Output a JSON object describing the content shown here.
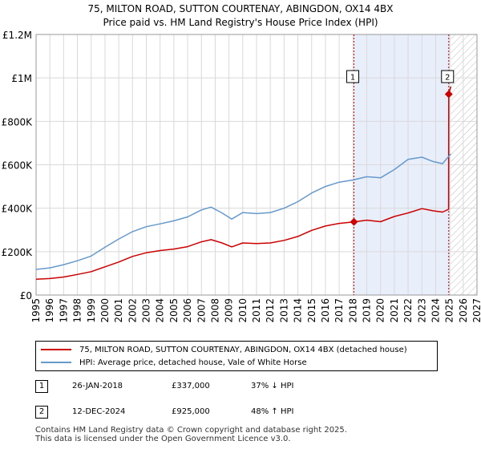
{
  "chart_data": {
    "type": "line",
    "title": "75, MILTON ROAD, SUTTON COURTENAY, ABINGDON, OX14 4BX",
    "subtitle": "Price paid vs. HM Land Registry's House Price Index (HPI)",
    "xlabel": "",
    "ylabel": "",
    "xlim": [
      1995,
      2027
    ],
    "ylim": [
      0,
      1200000
    ],
    "x_ticks": [
      "1995",
      "1996",
      "1997",
      "1998",
      "1999",
      "2000",
      "2001",
      "2002",
      "2003",
      "2004",
      "2005",
      "2006",
      "2007",
      "2008",
      "2009",
      "2010",
      "2011",
      "2012",
      "2013",
      "2014",
      "2015",
      "2016",
      "2017",
      "2018",
      "2019",
      "2020",
      "2021",
      "2022",
      "2023",
      "2024",
      "2025",
      "2026",
      "2027"
    ],
    "y_ticks": [
      {
        "value": 0,
        "label": "£0"
      },
      {
        "value": 200000,
        "label": "£200K"
      },
      {
        "value": 400000,
        "label": "£400K"
      },
      {
        "value": 600000,
        "label": "£600K"
      },
      {
        "value": 800000,
        "label": "£800K"
      },
      {
        "value": 1000000,
        "label": "£1M"
      },
      {
        "value": 1200000,
        "label": "£1.2M"
      }
    ],
    "grid": true,
    "series": [
      {
        "name": "75, MILTON ROAD, SUTTON COURTENAY, ABINGDON, OX14 4BX (detached house)",
        "color": "#cc0000",
        "x": [
          1995.0,
          1996.0,
          1997.0,
          1998.0,
          1999.0,
          2000.0,
          2001.0,
          2002.0,
          2003.0,
          2004.0,
          2005.0,
          2006.0,
          2007.0,
          2007.7,
          2008.5,
          2009.2,
          2010.0,
          2011.0,
          2012.0,
          2013.0,
          2014.0,
          2015.0,
          2016.0,
          2017.0,
          2018.07,
          2019.0,
          2020.0,
          2021.0,
          2022.0,
          2023.0,
          2023.8,
          2024.5,
          2024.94,
          2024.95,
          2025.1
        ],
        "values": [
          73000,
          76000,
          83000,
          95000,
          108000,
          130000,
          152000,
          178000,
          195000,
          205000,
          212000,
          223000,
          245000,
          255000,
          240000,
          222000,
          240000,
          237000,
          240000,
          252000,
          270000,
          298000,
          318000,
          330000,
          337000,
          345000,
          338000,
          362000,
          378000,
          398000,
          388000,
          382000,
          395000,
          925000,
          960000
        ]
      },
      {
        "name": "HPI: Average price, detached house, Vale of White Horse",
        "color": "#6699cc",
        "x": [
          1995.0,
          1996.0,
          1997.0,
          1998.0,
          1999.0,
          2000.0,
          2001.0,
          2002.0,
          2003.0,
          2004.0,
          2005.0,
          2006.0,
          2007.0,
          2007.7,
          2008.5,
          2009.2,
          2010.0,
          2011.0,
          2012.0,
          2013.0,
          2014.0,
          2015.0,
          2016.0,
          2017.0,
          2018.0,
          2019.0,
          2020.0,
          2021.0,
          2022.0,
          2023.0,
          2023.8,
          2024.5,
          2025.1
        ],
        "values": [
          118000,
          125000,
          140000,
          158000,
          180000,
          220000,
          258000,
          292000,
          315000,
          328000,
          342000,
          360000,
          392000,
          405000,
          378000,
          350000,
          380000,
          375000,
          380000,
          400000,
          430000,
          470000,
          500000,
          520000,
          530000,
          545000,
          540000,
          578000,
          625000,
          635000,
          615000,
          605000,
          650000
        ]
      }
    ],
    "transactions": [
      {
        "label": "1",
        "x": 2018.07,
        "value": 337000,
        "date": "26-JAN-2018",
        "price": "£337,000",
        "hpi_change": "37% ↓ HPI"
      },
      {
        "label": "2",
        "x": 2024.95,
        "value": 925000,
        "date": "12-DEC-2024",
        "price": "£925,000",
        "hpi_change": "48% ↑ HPI"
      }
    ],
    "highlight_start": 2018.07,
    "forecast_start": 2025.1
  },
  "colors": {
    "price_line": "#cc0000",
    "hpi_line": "#6699cc",
    "highlight_band": "#e8eefa",
    "grid": "#d9d9d9"
  },
  "footer": {
    "line1": "Contains HM Land Registry data © Crown copyright and database right 2025.",
    "line2": "This data is licensed under the Open Government Licence v3.0."
  }
}
